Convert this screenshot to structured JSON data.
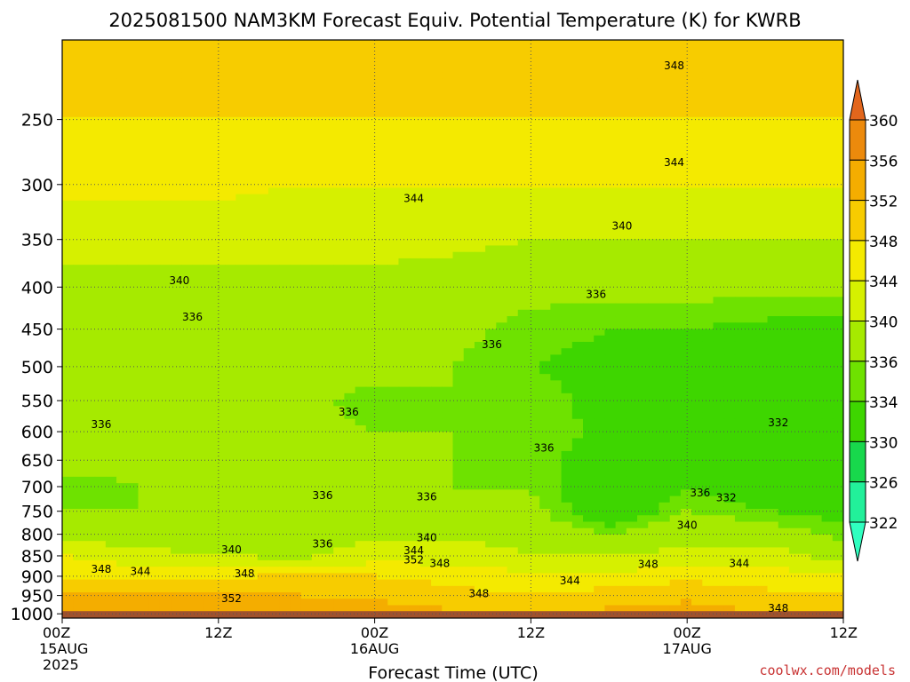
{
  "chart_data": {
    "type": "heatmap",
    "title": "2025081500 NAM3KM Forecast Equiv. Potential Temperature (K) for KWRB",
    "xlabel": "Forecast Time (UTC)",
    "ylabel": "",
    "x_ticks": [
      {
        "label": "00Z",
        "sub": "15AUG",
        "sub2": "2025",
        "hour": 0
      },
      {
        "label": "12Z",
        "sub": "",
        "sub2": "",
        "hour": 12
      },
      {
        "label": "00Z",
        "sub": "16AUG",
        "sub2": "",
        "hour": 24
      },
      {
        "label": "12Z",
        "sub": "",
        "sub2": "",
        "hour": 36
      },
      {
        "label": "00Z",
        "sub": "17AUG",
        "sub2": "",
        "hour": 48
      },
      {
        "label": "12Z",
        "sub": "",
        "sub2": "",
        "hour": 60
      }
    ],
    "x_range_hours": [
      0,
      60
    ],
    "y_ticks": [
      250,
      300,
      350,
      400,
      450,
      500,
      550,
      600,
      650,
      700,
      750,
      800,
      850,
      900,
      950,
      1000
    ],
    "y_range_hPa": [
      200,
      1012
    ],
    "y_scale": "log-pressure",
    "grid": "dotted",
    "colorbar": {
      "ticks": [
        360,
        356,
        352,
        348,
        344,
        340,
        336,
        334,
        330,
        326,
        322
      ],
      "colors": [
        "#e2661c",
        "#ec8a0c",
        "#f4ad00",
        "#f7cc00",
        "#f4ea00",
        "#d6f000",
        "#a6ea00",
        "#6ee200",
        "#3ed600",
        "#18d84c",
        "#22f09a",
        "#30ffc0"
      ]
    },
    "field": {
      "hours": [
        0,
        6,
        12,
        18,
        24,
        30,
        36,
        42,
        48,
        54,
        60
      ],
      "levels_hPa": [
        210,
        250,
        300,
        350,
        400,
        450,
        500,
        550,
        600,
        650,
        700,
        750,
        800,
        850,
        900,
        950,
        1000
      ],
      "values_K": [
        [
          350,
          350,
          350,
          350,
          350,
          350,
          350,
          350,
          350,
          350,
          350
        ],
        [
          348,
          348,
          348,
          348,
          348,
          348,
          348,
          348,
          348,
          348,
          348
        ],
        [
          345,
          345,
          345,
          344,
          344,
          344,
          344,
          344,
          344,
          344,
          344
        ],
        [
          341,
          341,
          341,
          341,
          341,
          341,
          340,
          340,
          340,
          340,
          340
        ],
        [
          339,
          339,
          339,
          339,
          339,
          338,
          337,
          337,
          337,
          337,
          337
        ],
        [
          337,
          337,
          337,
          337,
          337,
          337,
          335,
          334,
          334,
          333,
          333
        ],
        [
          337,
          336,
          336,
          337,
          337,
          336,
          334,
          333,
          333,
          332,
          332
        ],
        [
          336,
          337,
          336,
          337,
          335,
          336,
          335,
          333,
          333,
          332,
          331
        ],
        [
          337,
          337,
          337,
          337,
          336,
          336,
          336,
          333,
          333,
          332,
          330
        ],
        [
          337,
          337,
          337,
          337,
          337,
          336,
          335,
          332,
          333,
          331,
          330
        ],
        [
          335,
          336,
          336,
          336,
          336,
          336,
          336,
          330,
          334,
          331,
          331
        ],
        [
          336,
          336,
          337,
          337,
          337,
          337,
          337,
          331,
          336,
          334,
          333
        ],
        [
          338,
          338,
          338,
          338,
          339,
          339,
          339,
          336,
          339,
          338,
          335
        ],
        [
          344,
          341,
          340,
          339,
          342,
          342,
          340,
          340,
          341,
          342,
          338
        ],
        [
          348,
          347,
          347,
          349,
          348,
          347,
          345,
          345,
          347,
          346,
          345
        ],
        [
          352,
          352,
          352,
          352,
          351,
          349,
          348,
          350,
          351,
          349,
          348
        ],
        [
          356,
          356,
          356,
          356,
          355,
          353,
          352,
          353,
          354,
          352,
          350
        ]
      ]
    },
    "contour_labels": [
      {
        "text": "348",
        "hour": 47,
        "hPa": 215
      },
      {
        "text": "344",
        "hour": 47,
        "hPa": 282
      },
      {
        "text": "344",
        "hour": 27,
        "hPa": 312
      },
      {
        "text": "340",
        "hour": 43,
        "hPa": 337
      },
      {
        "text": "340",
        "hour": 9,
        "hPa": 393
      },
      {
        "text": "336",
        "hour": 41,
        "hPa": 408
      },
      {
        "text": "336",
        "hour": 10,
        "hPa": 435
      },
      {
        "text": "336",
        "hour": 33,
        "hPa": 470
      },
      {
        "text": "336",
        "hour": 22,
        "hPa": 568
      },
      {
        "text": "336",
        "hour": 3,
        "hPa": 588
      },
      {
        "text": "336",
        "hour": 37,
        "hPa": 628
      },
      {
        "text": "332",
        "hour": 55,
        "hPa": 585
      },
      {
        "text": "336",
        "hour": 20,
        "hPa": 718
      },
      {
        "text": "336",
        "hour": 28,
        "hPa": 720
      },
      {
        "text": "336",
        "hour": 49,
        "hPa": 712
      },
      {
        "text": "332",
        "hour": 51,
        "hPa": 722
      },
      {
        "text": "340",
        "hour": 48,
        "hPa": 780
      },
      {
        "text": "340",
        "hour": 28,
        "hPa": 808
      },
      {
        "text": "336",
        "hour": 20,
        "hPa": 822
      },
      {
        "text": "340",
        "hour": 13,
        "hPa": 835
      },
      {
        "text": "344",
        "hour": 27,
        "hPa": 837
      },
      {
        "text": "352",
        "hour": 27,
        "hPa": 860
      },
      {
        "text": "348",
        "hour": 29,
        "hPa": 868
      },
      {
        "text": "344",
        "hour": 52,
        "hPa": 868
      },
      {
        "text": "348",
        "hour": 45,
        "hPa": 870
      },
      {
        "text": "348",
        "hour": 3,
        "hPa": 882
      },
      {
        "text": "344",
        "hour": 6,
        "hPa": 888
      },
      {
        "text": "348",
        "hour": 14,
        "hPa": 893
      },
      {
        "text": "344",
        "hour": 39,
        "hPa": 912
      },
      {
        "text": "348",
        "hour": 32,
        "hPa": 945
      },
      {
        "text": "352",
        "hour": 13,
        "hPa": 958
      },
      {
        "text": "348",
        "hour": 55,
        "hPa": 985
      }
    ]
  },
  "watermark": "coolwx.com/models"
}
